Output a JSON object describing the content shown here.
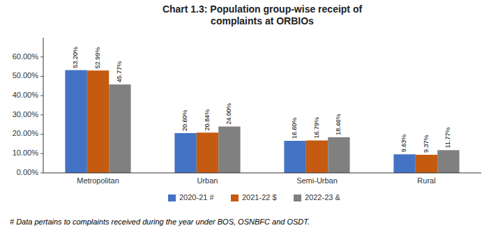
{
  "chart_data": {
    "type": "bar",
    "title": "Chart 1.3: Population group-wise receipt of\ncomplaints at ORBIOs",
    "categories": [
      "Metropolitan",
      "Urban",
      "Semi-Urban",
      "Rural"
    ],
    "series": [
      {
        "name": "2020-21 #",
        "color": "#4472C4",
        "values": [
          53.2,
          20.6,
          16.6,
          9.63
        ],
        "value_labels": [
          "53.20%",
          "20.60%",
          "16.60%",
          "9.63%"
        ]
      },
      {
        "name": "2021-22 $",
        "color": "#C55A11",
        "values": [
          52.99,
          20.84,
          16.79,
          9.37
        ],
        "value_labels": [
          "52.99%",
          "20.84%",
          "16.79%",
          "9.37%"
        ]
      },
      {
        "name": "2022-23 &",
        "color": "#808080",
        "values": [
          45.77,
          24.0,
          18.46,
          11.77
        ],
        "value_labels": [
          "45.77%",
          "24.00%",
          "18.46%",
          "11.77%"
        ]
      }
    ],
    "ylim": [
      0,
      70
    ],
    "yticks": [
      {
        "value": 0,
        "label": "0.00%"
      },
      {
        "value": 10,
        "label": "10.00%"
      },
      {
        "value": 20,
        "label": "20.00%"
      },
      {
        "value": 30,
        "label": "30.00%"
      },
      {
        "value": 40,
        "label": "40.00%"
      },
      {
        "value": 50,
        "label": "50.00%"
      },
      {
        "value": 60,
        "label": "60.00%"
      }
    ],
    "data_labels": true,
    "grid": false,
    "legend": "bottom",
    "annotations": [
      "# Data pertains to complaints received during the year under BOS, OSNBFC and OSDT."
    ]
  }
}
